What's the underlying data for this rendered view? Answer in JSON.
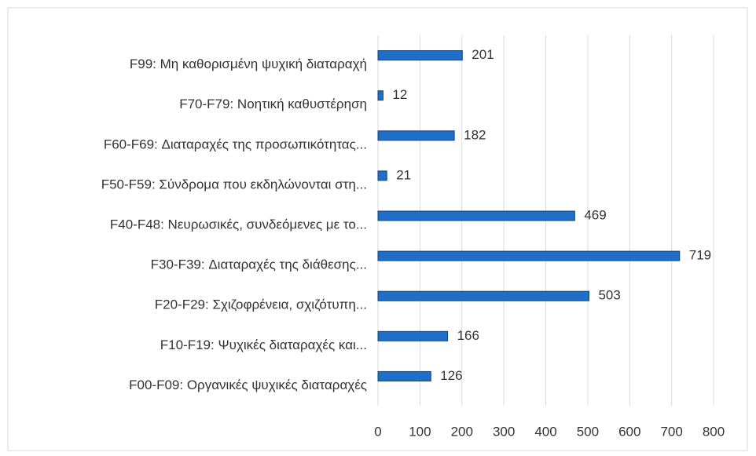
{
  "chart_data": {
    "type": "bar",
    "orientation": "horizontal",
    "categories": [
      "F99: Μη καθορισμένη ψυχική διαταραχή",
      "F70-F79: Νοητική καθυστέρηση",
      "F60-F69: Διαταραχές της προσωπικότητας...",
      "F50-F59: Σύνδρομα που εκδηλώνονται στη...",
      "F40-F48: Νευρωσικές, συνδεόμενες με το...",
      "F30-F39: Διαταραχές της διάθεσης...",
      "F20-F29: Σχιζοφρένεια, σχιζότυπη...",
      "F10-F19: Ψυχικές διαταραχές και...",
      "F00-F09: Οργανικές ψυχικές διαταραχές"
    ],
    "values": [
      201,
      12,
      182,
      21,
      469,
      719,
      503,
      166,
      126
    ],
    "color": "#1f6fc8",
    "xlim": [
      0,
      800
    ],
    "xticks": [
      0,
      100,
      200,
      300,
      400,
      500,
      600,
      700,
      800
    ],
    "grid": true
  }
}
